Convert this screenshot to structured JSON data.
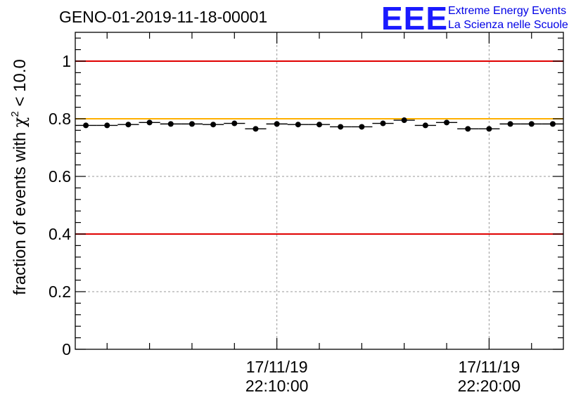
{
  "header": {
    "run_title": "GENO-01-2019-11-18-00001",
    "logo_text": "EEE",
    "logo_line1": "Extreme Energy Events",
    "logo_line2": "La Scienza nelle Scuole"
  },
  "colors": {
    "threshold_red": "#e00000",
    "reference_orange": "#ffb000",
    "marker": "#000000",
    "grid": "#999999"
  },
  "chart_data": {
    "type": "scatter",
    "title": "GENO-01-2019-11-18-00001",
    "ylabel_prefix": "fraction of events with ",
    "ylabel_chi": "χ",
    "ylabel_sup": "2",
    "ylabel_suffix": " < 10.0",
    "ylim": [
      0,
      1.1
    ],
    "yticks": [
      {
        "v": 0,
        "label": "0"
      },
      {
        "v": 0.2,
        "label": "0.2"
      },
      {
        "v": 0.4,
        "label": "0.4"
      },
      {
        "v": 0.6,
        "label": "0.6"
      },
      {
        "v": 0.8,
        "label": "0.8"
      },
      {
        "v": 1,
        "label": "1"
      }
    ],
    "x_range_bins": [
      0,
      23
    ],
    "xticks": [
      {
        "v": 9.5,
        "date": "17/11/19",
        "time": "22:10:00"
      },
      {
        "v": 19.5,
        "date": "17/11/19",
        "time": "22:20:00"
      }
    ],
    "grid": true,
    "reference_lines": [
      {
        "y": 1.0,
        "color": "#e00000"
      },
      {
        "y": 0.4,
        "color": "#e00000"
      },
      {
        "y": 0.8,
        "color": "#ffb000"
      }
    ],
    "values": [
      0.777,
      0.777,
      0.78,
      0.787,
      0.782,
      0.782,
      0.78,
      0.784,
      0.765,
      0.782,
      0.78,
      0.78,
      0.772,
      0.772,
      0.784,
      0.795,
      0.777,
      0.787,
      0.765,
      0.765,
      0.782,
      0.782,
      0.782
    ]
  }
}
